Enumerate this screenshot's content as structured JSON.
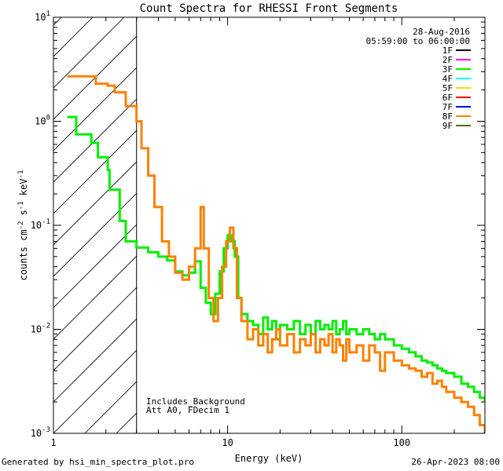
{
  "chart_data": {
    "type": "line",
    "title": "Count Spectra for RHESSI Front Segments",
    "xlabel": "Energy (keV)",
    "ylabel": "counts cm",
    "ylabel_sup1": "-2",
    "ylabel_mid": " s",
    "ylabel_sup2": "-1",
    "ylabel_end": " keV",
    "ylabel_sup3": "-1",
    "x_scale": "log",
    "y_scale": "log",
    "xlim": [
      1,
      300
    ],
    "ylim": [
      0.001,
      10
    ],
    "x_ticks": [
      {
        "value": 1,
        "label": "1"
      },
      {
        "value": 10,
        "label": "10"
      },
      {
        "value": 100,
        "label": "100"
      }
    ],
    "y_ticks": [
      {
        "exp": -3,
        "label_base": "10",
        "label_exp": "-3"
      },
      {
        "exp": -2,
        "label_base": "10",
        "label_exp": "-2"
      },
      {
        "exp": -1,
        "label_base": "10",
        "label_exp": "-1"
      },
      {
        "exp": 0,
        "label_base": "10",
        "label_exp": "0"
      },
      {
        "exp": 1,
        "label_base": "10",
        "label_exp": "1"
      }
    ],
    "date": "28-Aug-2016",
    "time_range": "05:59:00 to 06:00:00",
    "hatched_region_below_keV": 3,
    "annotations": [
      "Includes_Background",
      "Att A0, FDecim 1"
    ],
    "legend": [
      {
        "name": "1F",
        "color": "#000000"
      },
      {
        "name": "2F",
        "color": "#ff00ff"
      },
      {
        "name": "3F",
        "color": "#00ee00"
      },
      {
        "name": "4F",
        "color": "#00ffff"
      },
      {
        "name": "5F",
        "color": "#ffd700"
      },
      {
        "name": "6F",
        "color": "#ff0000"
      },
      {
        "name": "7F",
        "color": "#0000ff"
      },
      {
        "name": "8F",
        "color": "#ff8000"
      },
      {
        "name": "9F",
        "color": "#556b00"
      }
    ],
    "series": [
      {
        "name": "3F",
        "color": "#00ee00",
        "steps": [
          [
            1.2,
            1.1
          ],
          [
            1.35,
            0.75
          ],
          [
            1.65,
            0.62
          ],
          [
            1.8,
            0.45
          ],
          [
            2.05,
            0.34
          ],
          [
            2.1,
            0.22
          ],
          [
            2.4,
            0.11
          ],
          [
            2.6,
            0.07
          ],
          [
            3,
            0.061
          ],
          [
            3.5,
            0.055
          ],
          [
            4,
            0.05
          ],
          [
            4.5,
            0.046
          ],
          [
            5,
            0.036
          ],
          [
            5.5,
            0.033
          ],
          [
            6,
            0.035
          ],
          [
            6.5,
            0.045
          ],
          [
            7,
            0.025
          ],
          [
            7.5,
            0.018
          ],
          [
            8,
            0.014
          ],
          [
            8.5,
            0.022
          ],
          [
            9,
            0.036
          ],
          [
            9.5,
            0.06
          ],
          [
            10,
            0.08
          ],
          [
            10.5,
            0.07
          ],
          [
            11,
            0.05
          ],
          [
            11.5,
            0.02
          ],
          [
            12,
            0.014
          ],
          [
            13,
            0.012
          ],
          [
            14,
            0.011
          ],
          [
            15,
            0.009
          ],
          [
            16,
            0.013
          ],
          [
            17,
            0.01
          ],
          [
            18,
            0.012
          ],
          [
            19,
            0.008
          ],
          [
            20,
            0.011
          ],
          [
            22,
            0.01
          ],
          [
            24,
            0.012
          ],
          [
            26,
            0.009
          ],
          [
            28,
            0.011
          ],
          [
            30,
            0.009
          ],
          [
            32,
            0.012
          ],
          [
            34,
            0.01
          ],
          [
            36,
            0.011
          ],
          [
            38,
            0.01
          ],
          [
            40,
            0.012
          ],
          [
            42,
            0.009
          ],
          [
            44,
            0.01
          ],
          [
            46,
            0.012
          ],
          [
            48,
            0.009
          ],
          [
            50,
            0.01
          ],
          [
            55,
            0.009
          ],
          [
            60,
            0.01
          ],
          [
            65,
            0.009
          ],
          [
            70,
            0.008
          ],
          [
            75,
            0.009
          ],
          [
            80,
            0.008
          ],
          [
            90,
            0.007
          ],
          [
            100,
            0.0065
          ],
          [
            110,
            0.006
          ],
          [
            120,
            0.0055
          ],
          [
            130,
            0.005
          ],
          [
            140,
            0.0048
          ],
          [
            150,
            0.0045
          ],
          [
            160,
            0.0042
          ],
          [
            170,
            0.004
          ],
          [
            180,
            0.0038
          ],
          [
            200,
            0.0035
          ],
          [
            220,
            0.003
          ],
          [
            240,
            0.0028
          ],
          [
            260,
            0.0025
          ],
          [
            280,
            0.0022
          ],
          [
            300,
            0.002
          ]
        ]
      },
      {
        "name": "8F",
        "color": "#ff8000",
        "steps": [
          [
            1.2,
            2.7
          ],
          [
            1.65,
            2.7
          ],
          [
            1.75,
            2.3
          ],
          [
            2.05,
            2.2
          ],
          [
            2.25,
            1.9
          ],
          [
            2.6,
            1.4
          ],
          [
            3,
            1.0
          ],
          [
            3.2,
            0.55
          ],
          [
            3.5,
            0.3
          ],
          [
            3.8,
            0.15
          ],
          [
            4.2,
            0.07
          ],
          [
            4.6,
            0.05
          ],
          [
            5,
            0.035
          ],
          [
            5.5,
            0.03
          ],
          [
            6,
            0.04
          ],
          [
            6.5,
            0.06
          ],
          [
            7,
            0.15
          ],
          [
            7.3,
            0.06
          ],
          [
            7.8,
            0.02
          ],
          [
            8.3,
            0.012
          ],
          [
            8.8,
            0.02
          ],
          [
            9.3,
            0.04
          ],
          [
            9.8,
            0.07
          ],
          [
            10.3,
            0.095
          ],
          [
            10.8,
            0.06
          ],
          [
            11.3,
            0.02
          ],
          [
            12,
            0.012
          ],
          [
            13,
            0.008
          ],
          [
            14,
            0.01
          ],
          [
            15,
            0.007
          ],
          [
            16,
            0.009
          ],
          [
            17,
            0.006
          ],
          [
            18,
            0.008
          ],
          [
            19,
            0.01
          ],
          [
            20,
            0.007
          ],
          [
            22,
            0.009
          ],
          [
            24,
            0.006
          ],
          [
            26,
            0.008
          ],
          [
            28,
            0.007
          ],
          [
            30,
            0.009
          ],
          [
            32,
            0.006
          ],
          [
            34,
            0.008
          ],
          [
            36,
            0.007
          ],
          [
            38,
            0.009
          ],
          [
            40,
            0.006
          ],
          [
            42,
            0.008
          ],
          [
            44,
            0.007
          ],
          [
            46,
            0.005
          ],
          [
            48,
            0.008
          ],
          [
            50,
            0.006
          ],
          [
            55,
            0.007
          ],
          [
            60,
            0.005
          ],
          [
            65,
            0.007
          ],
          [
            70,
            0.006
          ],
          [
            75,
            0.004
          ],
          [
            80,
            0.006
          ],
          [
            90,
            0.005
          ],
          [
            100,
            0.0045
          ],
          [
            110,
            0.0042
          ],
          [
            120,
            0.004
          ],
          [
            130,
            0.0035
          ],
          [
            140,
            0.0038
          ],
          [
            150,
            0.003
          ],
          [
            160,
            0.0032
          ],
          [
            170,
            0.0028
          ],
          [
            180,
            0.0025
          ],
          [
            200,
            0.0022
          ],
          [
            220,
            0.002
          ],
          [
            240,
            0.0018
          ],
          [
            260,
            0.0015
          ],
          [
            280,
            0.0012
          ],
          [
            300,
            0.001
          ]
        ]
      }
    ]
  },
  "footer": {
    "left": "Generated by hsi_min_spectra_plot.pro",
    "right": "26-Apr-2023 08:00"
  }
}
